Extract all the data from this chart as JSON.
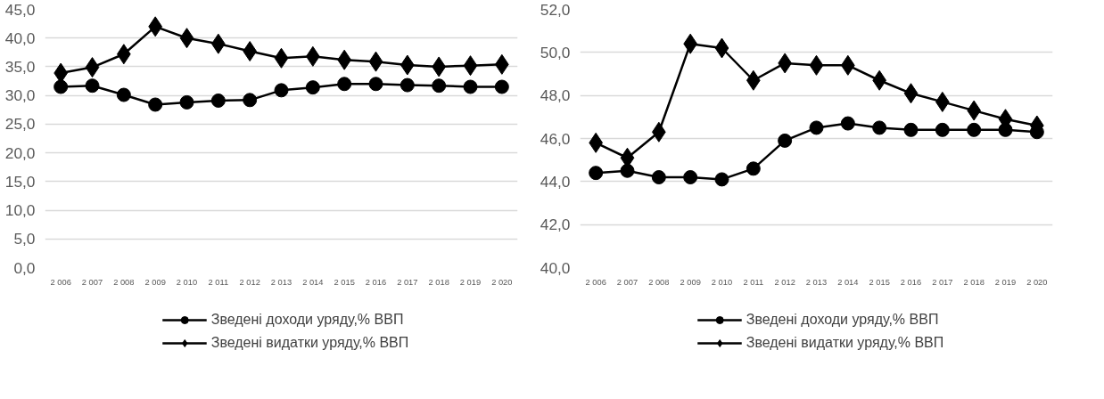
{
  "chart_data": [
    {
      "type": "line",
      "categories": [
        "2 006",
        "2 007",
        "2 008",
        "2 009",
        "2 010",
        "2 011",
        "2 012",
        "2 013",
        "2 014",
        "2 015",
        "2 016",
        "2 017",
        "2 018",
        "2 019",
        "2 020"
      ],
      "series": [
        {
          "name": "Зведені доходи уряду,% ВВП",
          "color": "#000000",
          "marker": "circle",
          "values": [
            31.5,
            31.7,
            30.1,
            28.4,
            28.8,
            29.1,
            29.2,
            30.9,
            31.4,
            32.0,
            32.0,
            31.8,
            31.7,
            31.5,
            31.5
          ]
        },
        {
          "name": "Зведені видатки уряду,% ВВП",
          "color": "#000000",
          "marker": "diamond",
          "values": [
            33.9,
            34.9,
            37.2,
            42.0,
            40.0,
            39.0,
            37.7,
            36.5,
            36.8,
            36.2,
            35.9,
            35.3,
            35.0,
            35.2,
            35.4
          ]
        }
      ],
      "ylim": [
        0,
        45
      ],
      "yticks": [
        {
          "value": 0,
          "label": "0,0"
        },
        {
          "value": 5,
          "label": "5,0"
        },
        {
          "value": 10,
          "label": "10,0"
        },
        {
          "value": 15,
          "label": "15,0"
        },
        {
          "value": 20,
          "label": "20,0"
        },
        {
          "value": 25,
          "label": "25,0"
        },
        {
          "value": 30,
          "label": "30,0"
        },
        {
          "value": 35,
          "label": "35,0"
        },
        {
          "value": 40,
          "label": "40,0"
        },
        {
          "value": 45,
          "label": "45,0"
        }
      ],
      "grid": "y",
      "legend": "bottom",
      "line_style": "solid"
    },
    {
      "type": "line",
      "categories": [
        "2 006",
        "2 007",
        "2 008",
        "2 009",
        "2 010",
        "2 011",
        "2 012",
        "2 013",
        "2 014",
        "2 015",
        "2 016",
        "2 017",
        "2 018",
        "2 019",
        "2 020"
      ],
      "series": [
        {
          "name": "Зведені доходи уряду,% ВВП",
          "color": "#000000",
          "marker": "circle",
          "values": [
            44.4,
            44.5,
            44.2,
            44.2,
            44.1,
            44.6,
            45.9,
            46.5,
            46.7,
            46.5,
            46.4,
            46.4,
            46.4,
            46.4,
            46.3
          ]
        },
        {
          "name": "Зведені видатки уряду,% ВВП",
          "color": "#000000",
          "marker": "diamond",
          "values": [
            45.8,
            45.1,
            46.3,
            50.4,
            50.2,
            48.7,
            49.5,
            49.4,
            49.4,
            48.7,
            48.1,
            47.7,
            47.3,
            46.9,
            46.6
          ]
        }
      ],
      "ylim": [
        40,
        52
      ],
      "yticks": [
        {
          "value": 40,
          "label": "40,0"
        },
        {
          "value": 42,
          "label": "42,0"
        },
        {
          "value": 44,
          "label": "44,0"
        },
        {
          "value": 46,
          "label": "46,0"
        },
        {
          "value": 48,
          "label": "48,0"
        },
        {
          "value": 50,
          "label": "50,0"
        },
        {
          "value": 52,
          "label": "52,0"
        }
      ],
      "grid": "y",
      "legend": "bottom",
      "line_style": "solid"
    }
  ]
}
